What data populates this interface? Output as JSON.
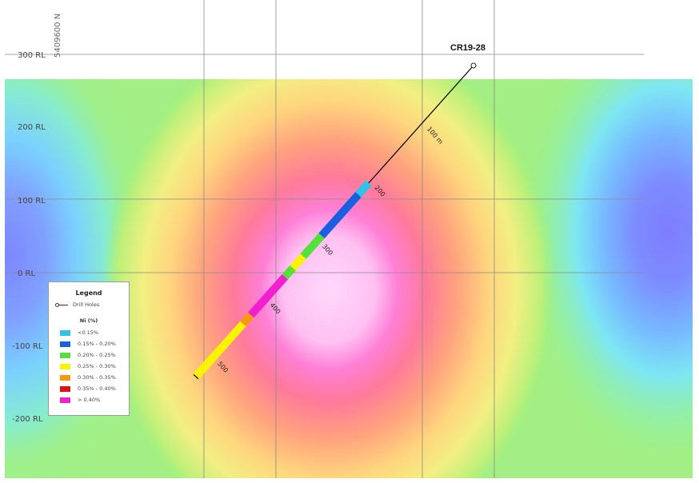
{
  "section": {
    "north_label": "5409600 N",
    "rl_labels": [
      "300 RL",
      "200 RL",
      "100 RL",
      "0 RL",
      "-100 RL",
      "-200 RL"
    ],
    "colors": {
      "grid": "#8a8a8a",
      "drill_trace": "#000000"
    }
  },
  "drill_hole": {
    "name": "CR19-28",
    "depth_labels": [
      "100 m",
      "200",
      "300",
      "400",
      "500"
    ],
    "intervals": [
      {
        "from": 200,
        "to": 220,
        "class": "lt015"
      },
      {
        "from": 220,
        "to": 290,
        "class": "c015_020"
      },
      {
        "from": 290,
        "to": 325,
        "class": "c020_025"
      },
      {
        "from": 325,
        "to": 345,
        "class": "c025_030"
      },
      {
        "from": 345,
        "to": 360,
        "class": "c020_025"
      },
      {
        "from": 360,
        "to": 425,
        "class": "gt040"
      },
      {
        "from": 425,
        "to": 440,
        "class": "c030_035"
      },
      {
        "from": 440,
        "to": 530,
        "class": "c025_030"
      }
    ]
  },
  "legend": {
    "title": "Legend",
    "drill_holes_label": "Drill Holes",
    "ni_title": "Ni (%)",
    "items": [
      {
        "id": "lt015",
        "label": "<0.15%",
        "color": "#2ec4ea"
      },
      {
        "id": "c015_020",
        "label": "0.15% - 0.20%",
        "color": "#1a5fe0"
      },
      {
        "id": "c020_025",
        "label": "0.20% - 0.25%",
        "color": "#55e03a"
      },
      {
        "id": "c025_030",
        "label": "0.25% - 0.30%",
        "color": "#f8f400"
      },
      {
        "id": "c030_035",
        "label": "0.30% - 0.35%",
        "color": "#f59a12"
      },
      {
        "id": "c035_040",
        "label": "0.35% - 0.40%",
        "color": "#e01010"
      },
      {
        "id": "gt040",
        "label": "> 0.40%",
        "color": "#f21fd0"
      }
    ]
  }
}
